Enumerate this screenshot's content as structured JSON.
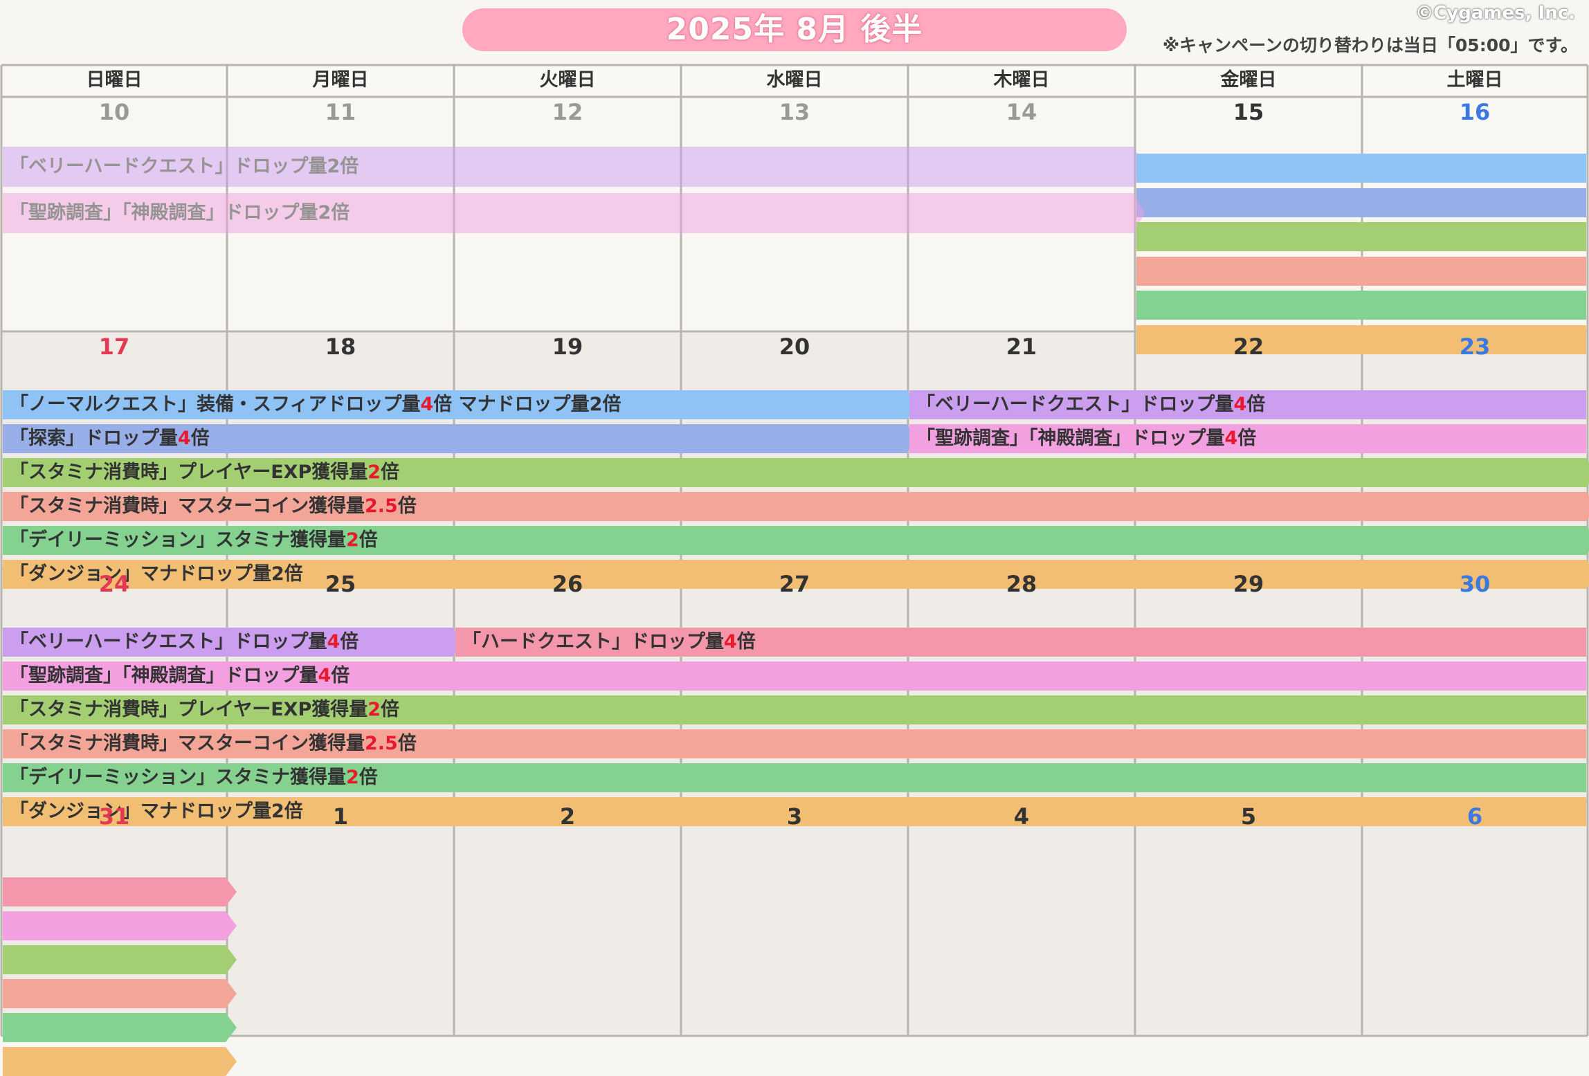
{
  "header": {
    "title": "2025年 8月 後半",
    "copyright": "©Cygames, Inc.",
    "note": "※キャンペーンの切り替わりは当日「05:00」です。"
  },
  "colors": {
    "veryhard": "#cc9ef0",
    "seiseki": "#f2a0e0",
    "normal": "#8fc3f5",
    "tansaku": "#97aee8",
    "exp": "#a3cf72",
    "coin": "#f3a698",
    "daily": "#84d190",
    "dungeon": "#f2be73",
    "hard": "#f597ab",
    "sunday": "#e23a55",
    "saturday": "#3a7ae0",
    "weekday": "#333333",
    "past": "#999999"
  },
  "calendar": {
    "weekdays": [
      "日曜日",
      "月曜日",
      "火曜日",
      "水曜日",
      "木曜日",
      "金曜日",
      "土曜日"
    ],
    "weeks": [
      {
        "days": [
          "10",
          "11",
          "12",
          "13",
          "14",
          "15",
          "16"
        ],
        "events": [
          {
            "name": "veryhard-drop",
            "color": "veryhard",
            "start": 0,
            "end": 5,
            "arrow": true,
            "faded": true,
            "text": [
              {
                "t": "「ベリーハードクエスト」ドロップ量2倍"
              }
            ]
          },
          {
            "name": "veryhard-continued",
            "color": "normal",
            "start": 5,
            "end": 7,
            "arrow": false,
            "faded": false,
            "text": []
          },
          {
            "name": "tansaku-continued",
            "color": "tansaku",
            "start": 5,
            "end": 7,
            "arrow": false,
            "faded": false,
            "text": []
          },
          {
            "name": "seiseki-drop",
            "color": "seiseki",
            "start": 0,
            "end": 5,
            "arrow": true,
            "faded": true,
            "text": [
              {
                "t": "「聖跡調査」「神殿調査」ドロップ量2倍"
              }
            ]
          },
          {
            "name": "exp-continued",
            "color": "exp",
            "start": 5,
            "end": 7,
            "arrow": false,
            "faded": false,
            "text": []
          },
          {
            "name": "coin-continued",
            "color": "coin",
            "start": 5,
            "end": 7,
            "arrow": false,
            "faded": false,
            "text": []
          },
          {
            "name": "daily-continued",
            "color": "daily",
            "start": 5,
            "end": 7,
            "arrow": false,
            "faded": false,
            "text": []
          },
          {
            "name": "dungeon-continued",
            "color": "dungeon",
            "start": 5,
            "end": 7,
            "arrow": false,
            "faded": false,
            "text": []
          }
        ]
      },
      {
        "days": [
          "17",
          "18",
          "19",
          "20",
          "21",
          "22",
          "23"
        ],
        "events": [
          {
            "name": "normal-quest-drop",
            "color": "normal",
            "start": 0,
            "end": 4,
            "arrow": true,
            "faded": false,
            "text": [
              {
                "t": "「ノーマルクエスト」装備・スフィアドロップ量"
              },
              {
                "t": "4",
                "hl": true
              },
              {
                "t": "倍 マナドロップ量2倍"
              }
            ]
          },
          {
            "name": "veryhard-drop",
            "color": "veryhard",
            "start": 4,
            "end": 7,
            "arrow": false,
            "faded": false,
            "text": [
              {
                "t": "「ベリーハードクエスト」ドロップ量"
              },
              {
                "t": "4",
                "hl": true
              },
              {
                "t": "倍"
              }
            ]
          },
          {
            "name": "tansaku-drop",
            "color": "tansaku",
            "start": 0,
            "end": 4,
            "arrow": true,
            "faded": false,
            "text": [
              {
                "t": "「探索」ドロップ量"
              },
              {
                "t": "4",
                "hl": true
              },
              {
                "t": "倍"
              }
            ]
          },
          {
            "name": "seiseki-drop",
            "color": "seiseki",
            "start": 4,
            "end": 7,
            "arrow": false,
            "faded": false,
            "text": [
              {
                "t": "「聖跡調査」「神殿調査」ドロップ量"
              },
              {
                "t": "4",
                "hl": true
              },
              {
                "t": "倍"
              }
            ]
          },
          {
            "name": "stamina-exp",
            "color": "exp",
            "start": 0,
            "end": 7,
            "arrow": true,
            "faded": false,
            "text": [
              {
                "t": "「スタミナ消費時」プレイヤーEXP獲得量"
              },
              {
                "t": "2",
                "hl": true
              },
              {
                "t": "倍"
              }
            ]
          },
          {
            "name": "stamina-coin",
            "color": "coin",
            "start": 0,
            "end": 7,
            "arrow": true,
            "faded": false,
            "text": [
              {
                "t": "「スタミナ消費時」マスターコイン獲得量"
              },
              {
                "t": "2.5",
                "hl": true
              },
              {
                "t": "倍"
              }
            ]
          },
          {
            "name": "daily-mission",
            "color": "daily",
            "start": 0,
            "end": 7,
            "arrow": true,
            "faded": false,
            "text": [
              {
                "t": "「デイリーミッション」スタミナ獲得量"
              },
              {
                "t": "2",
                "hl": true
              },
              {
                "t": "倍"
              }
            ]
          },
          {
            "name": "dungeon-mana",
            "color": "dungeon",
            "start": 0,
            "end": 7,
            "arrow": true,
            "faded": false,
            "text": [
              {
                "t": "「ダンジョン」マナドロップ量2倍"
              }
            ]
          }
        ]
      },
      {
        "days": [
          "24",
          "25",
          "26",
          "27",
          "28",
          "29",
          "30"
        ],
        "events": [
          {
            "name": "veryhard-drop",
            "color": "veryhard",
            "start": 0,
            "end": 2,
            "arrow": true,
            "faded": false,
            "text": [
              {
                "t": "「ベリーハードクエスト」ドロップ量"
              },
              {
                "t": "4",
                "hl": true
              },
              {
                "t": "倍"
              }
            ]
          },
          {
            "name": "hard-quest-drop",
            "color": "hard",
            "start": 2,
            "end": 7,
            "arrow": false,
            "faded": false,
            "text": [
              {
                "t": "「ハードクエスト」ドロップ量"
              },
              {
                "t": "4",
                "hl": true
              },
              {
                "t": "倍"
              }
            ]
          },
          {
            "name": "seiseki-drop",
            "color": "seiseki",
            "start": 0,
            "end": 7,
            "arrow": false,
            "faded": false,
            "text": [
              {
                "t": "「聖跡調査」「神殿調査」ドロップ量"
              },
              {
                "t": "4",
                "hl": true
              },
              {
                "t": "倍"
              }
            ]
          },
          {
            "name": "stamina-exp",
            "color": "exp",
            "start": 0,
            "end": 7,
            "arrow": false,
            "faded": false,
            "text": [
              {
                "t": "「スタミナ消費時」プレイヤーEXP獲得量"
              },
              {
                "t": "2",
                "hl": true
              },
              {
                "t": "倍"
              }
            ]
          },
          {
            "name": "stamina-coin",
            "color": "coin",
            "start": 0,
            "end": 7,
            "arrow": false,
            "faded": false,
            "text": [
              {
                "t": "「スタミナ消費時」マスターコイン獲得量"
              },
              {
                "t": "2.5",
                "hl": true
              },
              {
                "t": "倍"
              }
            ]
          },
          {
            "name": "daily-mission",
            "color": "daily",
            "start": 0,
            "end": 7,
            "arrow": false,
            "faded": false,
            "text": [
              {
                "t": "「デイリーミッション」スタミナ獲得量"
              },
              {
                "t": "2",
                "hl": true
              },
              {
                "t": "倍"
              }
            ]
          },
          {
            "name": "dungeon-mana",
            "color": "dungeon",
            "start": 0,
            "end": 7,
            "arrow": false,
            "faded": false,
            "text": [
              {
                "t": "「ダンジョン」マナドロップ量2倍"
              }
            ]
          }
        ]
      },
      {
        "days": [
          "31",
          "1",
          "2",
          "3",
          "4",
          "5",
          "6"
        ],
        "events": [
          {
            "name": "hard-continued",
            "color": "hard",
            "start": 0,
            "end": 1,
            "arrow": true,
            "faded": false,
            "text": []
          },
          {
            "name": "seiseki-continued",
            "color": "seiseki",
            "start": 0,
            "end": 1,
            "arrow": true,
            "faded": false,
            "text": []
          },
          {
            "name": "exp-continued",
            "color": "exp",
            "start": 0,
            "end": 1,
            "arrow": true,
            "faded": false,
            "text": []
          },
          {
            "name": "coin-continued",
            "color": "coin",
            "start": 0,
            "end": 1,
            "arrow": true,
            "faded": false,
            "text": []
          },
          {
            "name": "daily-continued",
            "color": "daily",
            "start": 0,
            "end": 1,
            "arrow": true,
            "faded": false,
            "text": []
          },
          {
            "name": "dungeon-continued",
            "color": "dungeon",
            "start": 0,
            "end": 1,
            "arrow": true,
            "faded": false,
            "text": []
          }
        ]
      }
    ]
  }
}
